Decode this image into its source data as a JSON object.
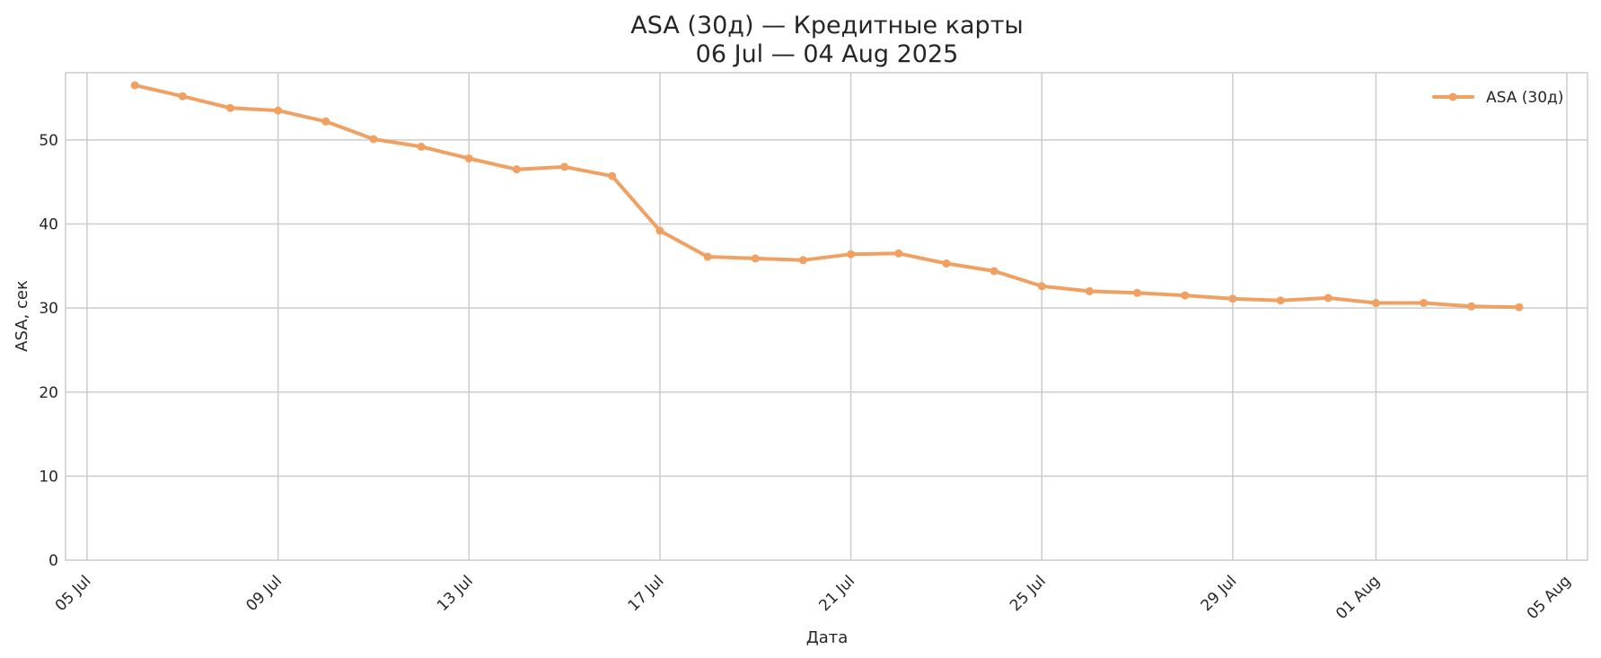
{
  "chart_data": {
    "type": "line",
    "title": "ASA (30д) — Кредитные карты",
    "subtitle": "06 Jul — 04 Aug 2025",
    "xlabel": "Дата",
    "ylabel": "ASA, сек",
    "x_axis_type": "date",
    "xlim": [
      "2025-07-05",
      "2025-08-05"
    ],
    "ylim": [
      0,
      58
    ],
    "y_ticks": [
      0,
      10,
      20,
      30,
      40,
      50
    ],
    "x_ticks": [
      {
        "date": "2025-07-05",
        "label": "05 Jul"
      },
      {
        "date": "2025-07-09",
        "label": "09 Jul"
      },
      {
        "date": "2025-07-13",
        "label": "13 Jul"
      },
      {
        "date": "2025-07-17",
        "label": "17 Jul"
      },
      {
        "date": "2025-07-21",
        "label": "21 Jul"
      },
      {
        "date": "2025-07-25",
        "label": "25 Jul"
      },
      {
        "date": "2025-07-29",
        "label": "29 Jul"
      },
      {
        "date": "2025-08-01",
        "label": "01 Aug"
      },
      {
        "date": "2025-08-05",
        "label": "05 Aug"
      }
    ],
    "grid": true,
    "legend_position": "top-right",
    "series": [
      {
        "name": "ASA (30д)",
        "color": "#f0a060",
        "marker": "circle",
        "x": [
          "2025-07-06",
          "2025-07-07",
          "2025-07-08",
          "2025-07-09",
          "2025-07-10",
          "2025-07-11",
          "2025-07-12",
          "2025-07-13",
          "2025-07-14",
          "2025-07-15",
          "2025-07-16",
          "2025-07-17",
          "2025-07-18",
          "2025-07-19",
          "2025-07-20",
          "2025-07-21",
          "2025-07-22",
          "2025-07-23",
          "2025-07-24",
          "2025-07-25",
          "2025-07-26",
          "2025-07-27",
          "2025-07-28",
          "2025-07-29",
          "2025-07-30",
          "2025-07-31",
          "2025-08-01",
          "2025-08-02",
          "2025-08-03",
          "2025-08-04"
        ],
        "values": [
          56.5,
          55.2,
          53.8,
          53.5,
          52.2,
          50.1,
          49.2,
          47.8,
          46.5,
          46.8,
          45.7,
          39.2,
          36.1,
          35.9,
          35.7,
          36.4,
          36.5,
          35.3,
          34.4,
          32.6,
          32.0,
          31.8,
          31.5,
          31.1,
          30.9,
          31.2,
          30.6,
          30.6,
          30.2,
          30.1
        ]
      }
    ]
  }
}
